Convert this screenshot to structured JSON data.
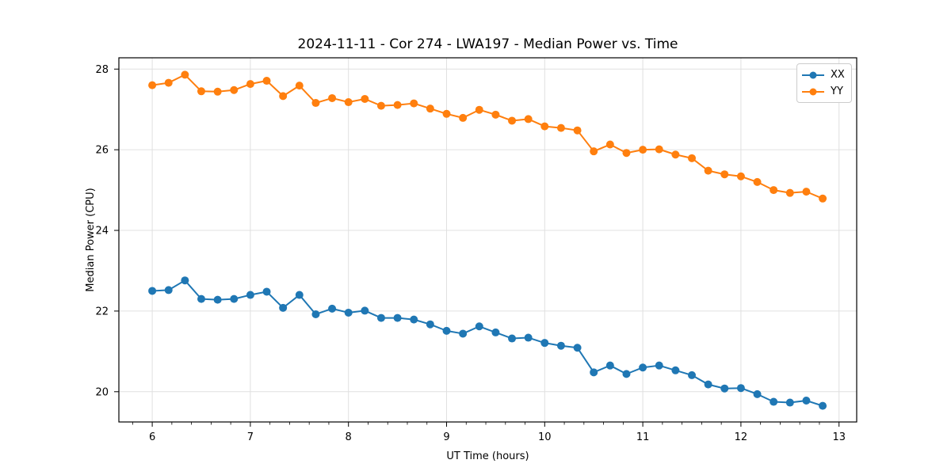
{
  "figure": {
    "background": "#ffffff",
    "grid_color": "#e0e0e0",
    "spine_color": "#000000"
  },
  "chart_data": {
    "type": "line",
    "title": "2024-11-11 - Cor 274 - LWA197 - Median Power vs. Time",
    "xlabel": "UT Time (hours)",
    "ylabel": "Median Power (CPU)",
    "xlim": [
      5.66,
      13.18
    ],
    "ylim": [
      19.25,
      28.28
    ],
    "xticks": [
      6,
      7,
      8,
      9,
      10,
      11,
      12,
      13
    ],
    "yticks": [
      20,
      22,
      24,
      26,
      28
    ],
    "x_minor_step": 0.2,
    "grid": true,
    "legend_position": "upper right",
    "x": [
      6.0,
      6.1667,
      6.3333,
      6.5,
      6.6667,
      6.8333,
      7.0,
      7.1667,
      7.3333,
      7.5,
      7.6667,
      7.8333,
      8.0,
      8.1667,
      8.3333,
      8.5,
      8.6667,
      8.8333,
      9.0,
      9.1667,
      9.3333,
      9.5,
      9.6667,
      9.8333,
      10.0,
      10.1667,
      10.3333,
      10.5,
      10.6667,
      10.8333,
      11.0,
      11.1667,
      11.3333,
      11.5,
      11.6667,
      11.8333,
      12.0,
      12.1667,
      12.3333,
      12.5,
      12.6667,
      12.8333
    ],
    "series": [
      {
        "name": "XX",
        "color": "#1f77b4",
        "marker": "circle",
        "values": [
          22.5,
          22.52,
          22.76,
          22.3,
          22.28,
          22.3,
          22.4,
          22.48,
          22.08,
          22.4,
          21.92,
          22.06,
          21.96,
          22.01,
          21.83,
          21.83,
          21.79,
          21.67,
          21.51,
          21.44,
          21.62,
          21.47,
          21.32,
          21.34,
          21.21,
          21.14,
          21.09,
          20.48,
          20.65,
          20.44,
          20.6,
          20.65,
          20.53,
          20.41,
          20.18,
          20.08,
          20.09,
          19.94,
          19.75,
          19.73,
          19.78,
          19.65
        ]
      },
      {
        "name": "YY",
        "color": "#ff7f0e",
        "marker": "circle",
        "values": [
          27.6,
          27.66,
          27.86,
          27.45,
          27.44,
          27.48,
          27.63,
          27.71,
          27.33,
          27.59,
          27.16,
          27.28,
          27.18,
          27.26,
          27.09,
          27.11,
          27.15,
          27.02,
          26.89,
          26.79,
          26.99,
          26.87,
          26.72,
          26.76,
          26.58,
          26.54,
          26.48,
          25.96,
          26.13,
          25.92,
          26.0,
          26.01,
          25.88,
          25.79,
          25.48,
          25.39,
          25.34,
          25.2,
          25.0,
          24.93,
          24.96,
          24.79
        ]
      }
    ]
  }
}
